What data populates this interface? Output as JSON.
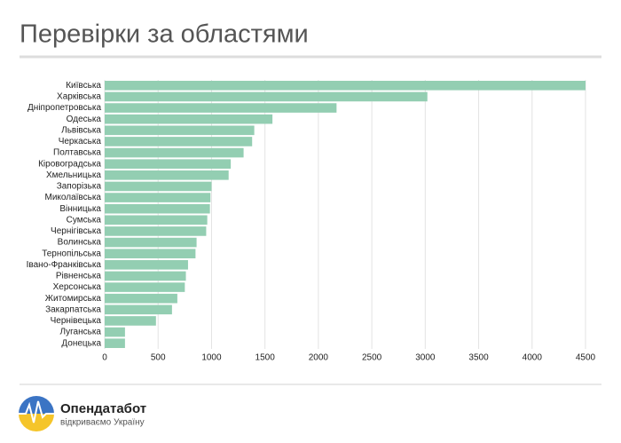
{
  "chart_data": {
    "type": "barh",
    "title": "Перевірки за областями",
    "categories": [
      "Київська",
      "Харківська",
      "Дніпропетровська",
      "Одеська",
      "Львівська",
      "Черкаська",
      "Полтавська",
      "Кіровоградська",
      "Хмельницька",
      "Запорізька",
      "Миколаївська",
      "Вінницька",
      "Сумська",
      "Чернігівська",
      "Волинська",
      "Тернопільська",
      "Івано-Франківська",
      "Рівненська",
      "Херсонська",
      "Житомирська",
      "Закарпатська",
      "Чернівецька",
      "Луганська",
      "Донецька"
    ],
    "values": [
      4500,
      3020,
      2170,
      1570,
      1400,
      1380,
      1300,
      1180,
      1160,
      1000,
      990,
      985,
      960,
      950,
      860,
      850,
      780,
      760,
      750,
      680,
      630,
      480,
      190,
      190
    ],
    "color": "#93ceb2",
    "xlim": [
      0,
      4500
    ],
    "xticks": [
      0,
      500,
      1000,
      1500,
      2000,
      2500,
      3000,
      3500,
      4000,
      4500
    ],
    "grid": true
  },
  "footer": {
    "brand": "Опендатабот",
    "tagline": "відкриваємо Україну"
  }
}
